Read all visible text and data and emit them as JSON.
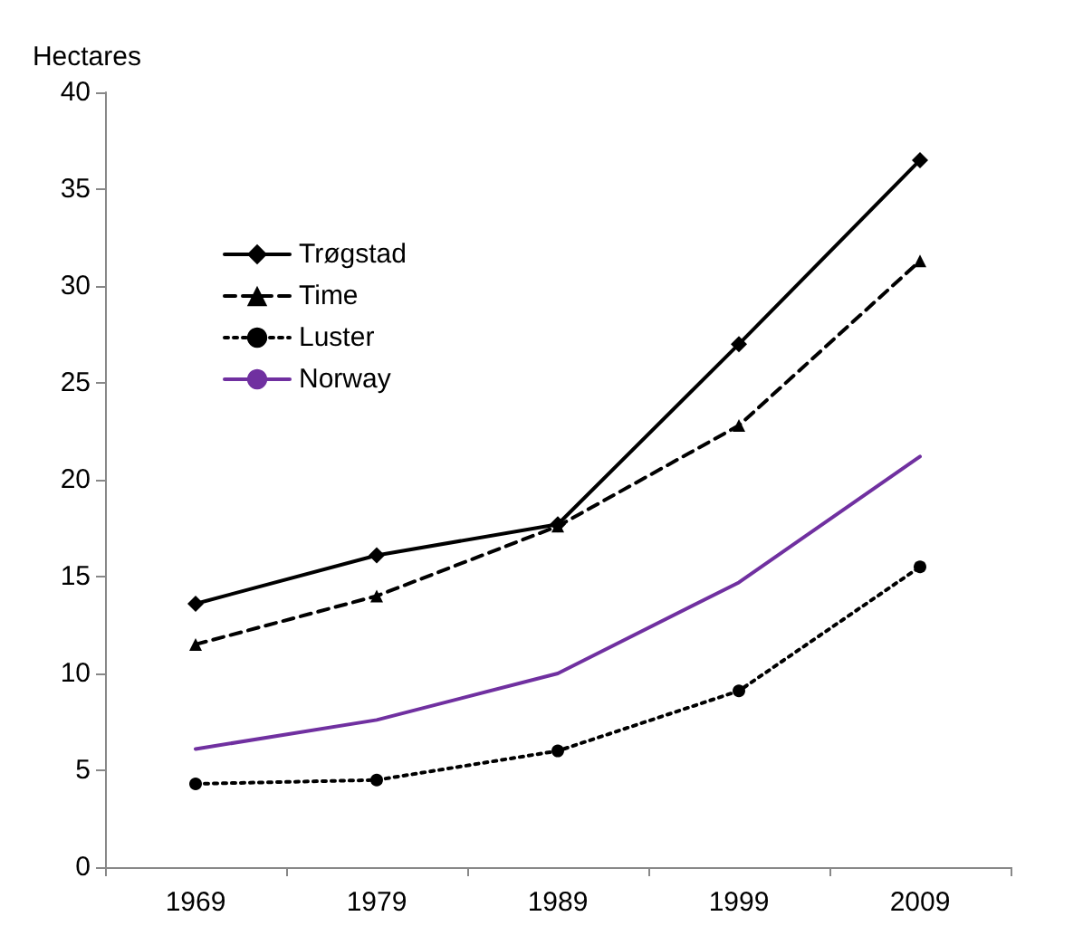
{
  "chart_data": {
    "type": "line",
    "ylabel": "Hectares",
    "categories": [
      "1969",
      "1979",
      "1989",
      "1999",
      "2009"
    ],
    "series": [
      {
        "name": "Trøgstad",
        "color": "#000000",
        "marker": "diamond",
        "line_style": "solid",
        "values": [
          13.6,
          16.1,
          17.7,
          27,
          36.5
        ]
      },
      {
        "name": "Time",
        "color": "#000000",
        "marker": "triangle",
        "line_style": "dashed",
        "values": [
          11.5,
          14,
          17.6,
          22.8,
          31.3
        ]
      },
      {
        "name": "Luster",
        "color": "#000000",
        "marker": "circle",
        "line_style": "dotted",
        "values": [
          4.3,
          4.5,
          6,
          9.1,
          15.5
        ]
      },
      {
        "name": "Norway",
        "color": "#7030a0",
        "marker": "none",
        "line_style": "solid",
        "values": [
          6.1,
          7.6,
          10,
          14.7,
          21.2
        ]
      }
    ],
    "ylim": [
      0,
      40
    ],
    "yticks": [
      0,
      5,
      10,
      15,
      20,
      25,
      30,
      35,
      40
    ],
    "grid": false,
    "legend": "top left"
  }
}
